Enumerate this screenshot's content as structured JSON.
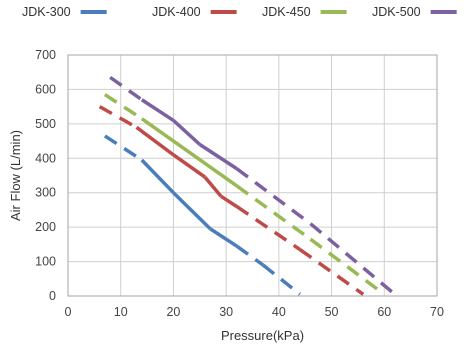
{
  "chart_data": {
    "type": "line",
    "xlabel": "Pressure(kPa)",
    "ylabel": "Air Flow (L/min)",
    "xlim": [
      0,
      70
    ],
    "ylim": [
      0,
      700
    ],
    "xticks": [
      0,
      10,
      20,
      30,
      40,
      50,
      60,
      70
    ],
    "yticks": [
      0,
      100,
      200,
      300,
      400,
      500,
      600,
      700
    ],
    "grid": true,
    "legend_position": "top",
    "series": [
      {
        "name": "JDK-300",
        "color": "#4a7ebb",
        "x": [
          7,
          14,
          20,
          27,
          32,
          37,
          44
        ],
        "y": [
          465,
          395,
          300,
          195,
          145,
          90,
          5
        ],
        "dashed_segments": [
          [
            7,
            14
          ],
          [
            32,
            44
          ]
        ]
      },
      {
        "name": "JDK-400",
        "color": "#be4b48",
        "x": [
          6,
          13,
          20,
          26,
          29,
          32,
          44,
          56
        ],
        "y": [
          550,
          490,
          410,
          345,
          290,
          260,
          135,
          5
        ],
        "dashed_segments": [
          [
            6,
            13
          ],
          [
            32,
            56
          ]
        ]
      },
      {
        "name": "JDK-450",
        "color": "#98b954",
        "x": [
          7,
          14,
          20,
          32,
          46,
          60
        ],
        "y": [
          585,
          515,
          450,
          320,
          165,
          5
        ],
        "dashed_segments": [
          [
            7,
            14
          ],
          [
            32,
            60
          ]
        ]
      },
      {
        "name": "JDK-500",
        "color": "#7d60a0",
        "x": [
          8,
          14,
          20,
          25,
          32,
          46,
          62
        ],
        "y": [
          635,
          570,
          510,
          440,
          370,
          210,
          5
        ],
        "dashed_segments": [
          [
            8,
            14
          ],
          [
            32,
            62
          ]
        ]
      }
    ]
  }
}
